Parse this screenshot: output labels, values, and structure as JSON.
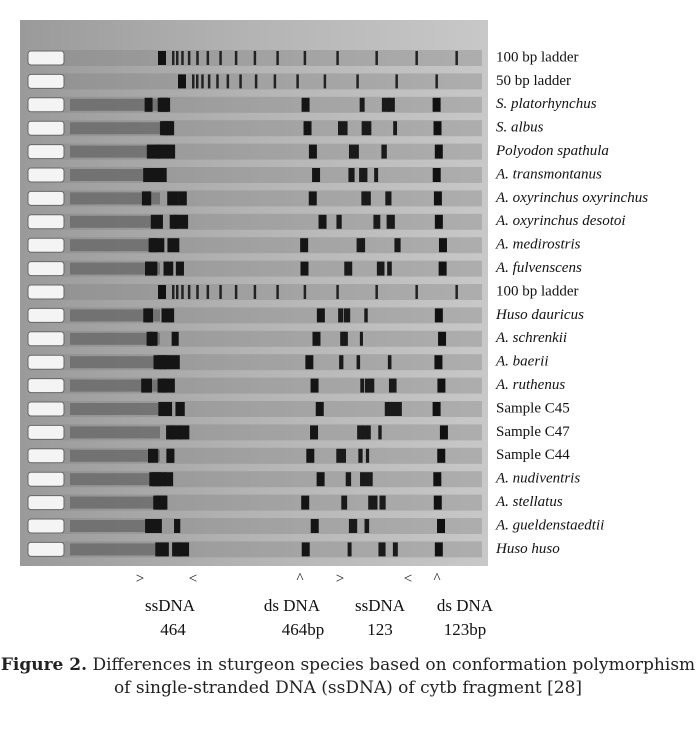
{
  "figure": {
    "lanes": [
      {
        "label": "100 bp ladder",
        "italic": false
      },
      {
        "label": "50 bp ladder",
        "italic": false
      },
      {
        "label": "S. platorhynchus",
        "italic": true
      },
      {
        "label": "S. albus",
        "italic": true
      },
      {
        "label": "Polyodon spathula",
        "italic": true
      },
      {
        "label": "A. transmontanus",
        "italic": true
      },
      {
        "label": "A. oxyrinchus oxyrinchus",
        "italic": true
      },
      {
        "label": "A. oxyrinchus desotoi",
        "italic": true
      },
      {
        "label": "A. medirostris",
        "italic": true
      },
      {
        "label": "A. fulvenscens",
        "italic": true
      },
      {
        "label": "100 bp ladder",
        "italic": false
      },
      {
        "label": "Huso dauricus",
        "italic": true
      },
      {
        "label": "A. schrenkii",
        "italic": true
      },
      {
        "label": "A. baerii",
        "italic": true
      },
      {
        "label": "A. ruthenus",
        "italic": true
      },
      {
        "label": "Sample C45",
        "italic": false
      },
      {
        "label": "Sample C47",
        "italic": false
      },
      {
        "label": "Sample C44",
        "italic": false
      },
      {
        "label": "A. nudiventris",
        "italic": true
      },
      {
        "label": "A. stellatus",
        "italic": true
      },
      {
        "label": "A. gueldenstaedtii",
        "italic": true
      },
      {
        "label": "Huso huso",
        "italic": true
      }
    ],
    "markers": [
      ">",
      "<",
      "^",
      ">",
      "<",
      "^"
    ],
    "column_labels": [
      {
        "line1": "ssDNA",
        "line2": "464"
      },
      {
        "line1": "ds DNA",
        "line2": "464bp"
      },
      {
        "line1": "ssDNA",
        "line2": "123"
      },
      {
        "line1": "ds DNA",
        "line2": "123bp"
      }
    ]
  },
  "caption": {
    "label": "Figure 2.",
    "text": "Differences in sturgeon species based on conformation polymorphism of single-stranded DNA (ssDNA) of cytb fragment [28]"
  }
}
